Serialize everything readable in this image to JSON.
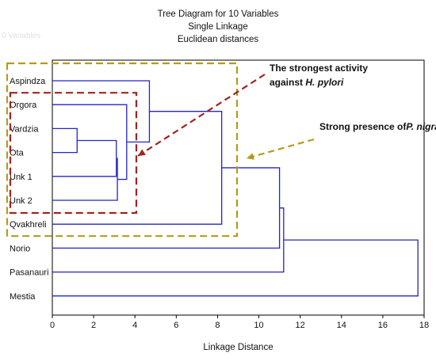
{
  "chart_data": {
    "type": "dendrogram",
    "title": "Tree Diagram for 10 Variables",
    "subtitle_lines": [
      "Single Linkage",
      "Euclidean distances"
    ],
    "xlabel": "Linkage Distance",
    "xlim": [
      0,
      18
    ],
    "xticks": [
      0,
      2,
      4,
      6,
      8,
      10,
      12,
      14,
      16,
      18
    ],
    "leaves": [
      "Aspindza",
      "Orgora",
      "Vardzia",
      "Ota",
      "Unk 1",
      "Unk 2",
      "Qvakhreli",
      "Norio",
      "Pasanauri",
      "Mestia"
    ],
    "merges": [
      {
        "id": "c1",
        "left": "Vardzia",
        "right": "Ota",
        "height": 1.2
      },
      {
        "id": "c2",
        "left": "c1",
        "right": "Unk 1",
        "height": 3.1
      },
      {
        "id": "c3",
        "left": "c2",
        "right": "Unk 2",
        "height": 3.15
      },
      {
        "id": "c4",
        "left": "Orgora",
        "right": "c3",
        "height": 3.6
      },
      {
        "id": "c5",
        "left": "Aspindza",
        "right": "c4",
        "height": 4.7
      },
      {
        "id": "c6",
        "left": "c5",
        "right": "Qvakhreli",
        "height": 8.2
      },
      {
        "id": "c7",
        "left": "c6",
        "right": "Norio",
        "height": 11.0
      },
      {
        "id": "c8",
        "left": "c7",
        "right": "Pasanauri",
        "height": 11.2
      },
      {
        "id": "c9",
        "left": "c8",
        "right": "Mestia",
        "height": 17.7
      }
    ],
    "line_color": "#2424c8",
    "annotations": [
      {
        "lines": [
          {
            "text": "The strongest activity"
          },
          {
            "text": "against ",
            "italic": "H. pylori"
          }
        ],
        "color": "#a0241f",
        "box_style": "dashed",
        "box_leaves": [
          "Orgora",
          "Unk 2"
        ]
      },
      {
        "lines": [
          {
            "text": "Strong presence of"
          },
          {
            "text": "",
            "italic": "P. nigra resins"
          }
        ],
        "color": "#b59a1a",
        "box_style": "dashed",
        "box_leaves": [
          "Aspindza",
          "Qvakhreli"
        ]
      }
    ]
  }
}
